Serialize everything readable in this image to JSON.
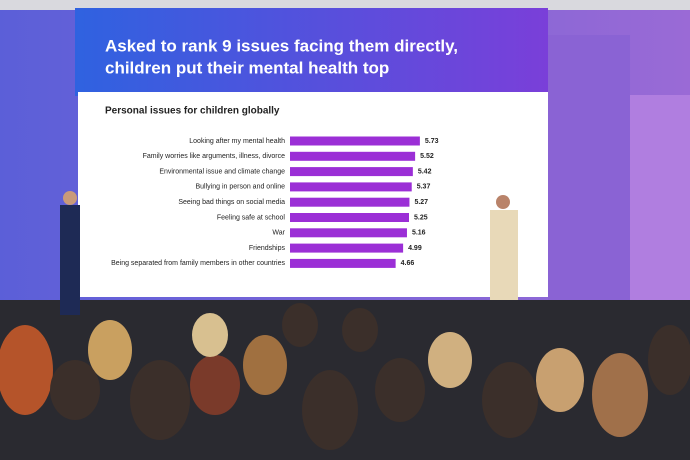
{
  "chart_data": {
    "type": "bar",
    "orientation": "horizontal",
    "title": "Asked to rank 9 issues facing them directly, children put their mental health top",
    "subtitle": "Personal issues for children globally",
    "categories": [
      "Looking after my mental health",
      "Family worries like arguments, illness, divorce",
      "Environmental issue and climate change",
      "Bullying in person and online",
      "Seeing bad things on social media",
      "Feeling safe at school",
      "War",
      "Friendships",
      "Being separated from family members in other countries"
    ],
    "values": [
      5.73,
      5.52,
      5.42,
      5.37,
      5.27,
      5.25,
      5.16,
      4.99,
      4.66
    ],
    "color": "#9b2fd6",
    "xlim": [
      0,
      6
    ]
  }
}
